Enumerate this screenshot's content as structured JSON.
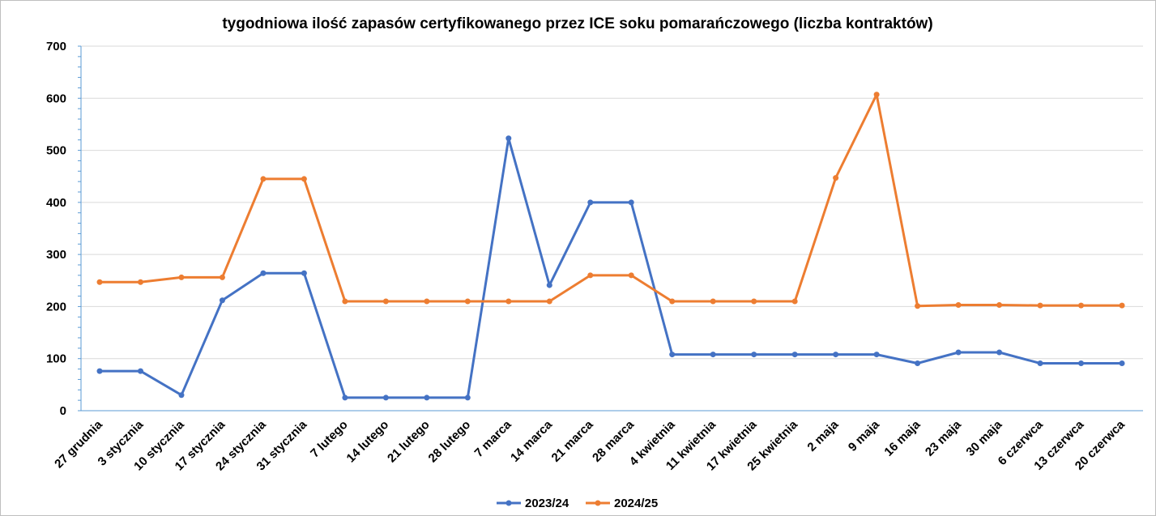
{
  "chart_data": {
    "type": "line",
    "title": "tygodniowa ilość zapasów certyfikowanego przez ICE soku pomarańczowego (liczba kontraktów)",
    "xlabel": "",
    "ylabel": "",
    "ylim": [
      0,
      700
    ],
    "yticks": [
      "0",
      "100",
      "200",
      "300",
      "400",
      "500",
      "600",
      "700"
    ],
    "grid": true,
    "legend": "bottom",
    "categories": [
      "27 grudnia",
      "3 stycznia",
      "10 stycznia",
      "17 stycznia",
      "24 stycznia",
      "31 stycznia",
      "7 lutego",
      "14 lutego",
      "21 lutego",
      "28 lutego",
      "7 marca",
      "14 marca",
      "21 marca",
      "28 marca",
      "4 kwietnia",
      "11 kwietnia",
      "17 kwietnia",
      "25 kwietnia",
      "2 maja",
      "9 maja",
      "16 maja",
      "23 maja",
      "30 maja",
      "6 czerwca",
      "13 czerwca",
      "20 czerwca"
    ],
    "series": [
      {
        "name": "2023/24",
        "color": "#4472c4",
        "values": [
          76,
          76,
          30,
          212,
          264,
          264,
          25,
          25,
          25,
          25,
          523,
          241,
          400,
          400,
          108,
          108,
          108,
          108,
          108,
          108,
          91,
          112,
          112,
          91,
          91,
          91
        ]
      },
      {
        "name": "2024/25",
        "color": "#ed7d31",
        "values": [
          247,
          247,
          256,
          256,
          445,
          445,
          210,
          210,
          210,
          210,
          210,
          210,
          260,
          260,
          210,
          210,
          210,
          210,
          447,
          607,
          201,
          203,
          203,
          202,
          202,
          202
        ]
      }
    ]
  }
}
